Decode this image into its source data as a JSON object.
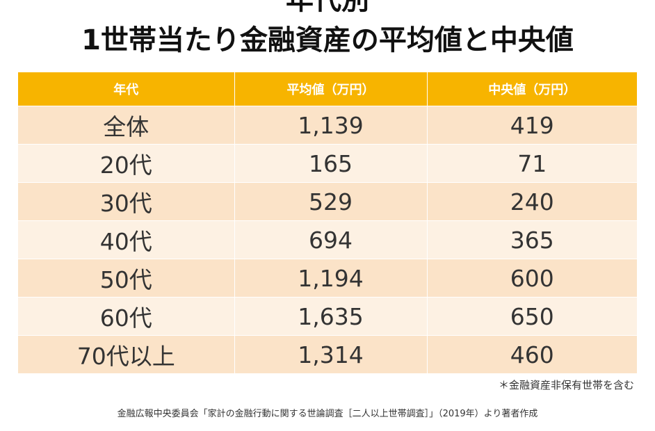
{
  "title": {
    "line1": "年代別",
    "line2": "1世帯当たり金融資産の平均値と中央値"
  },
  "table": {
    "headers": [
      "年代",
      "平均値（万円）",
      "中央値（万円）"
    ],
    "rows": [
      {
        "age": "全体",
        "mean": "1,139",
        "median": "419"
      },
      {
        "age": "20代",
        "mean": "165",
        "median": "71"
      },
      {
        "age": "30代",
        "mean": "529",
        "median": "240"
      },
      {
        "age": "40代",
        "mean": "694",
        "median": "365"
      },
      {
        "age": "50代",
        "mean": "1,194",
        "median": "600"
      },
      {
        "age": "60代",
        "mean": "1,635",
        "median": "650"
      },
      {
        "age": "70代以上",
        "mean": "1,314",
        "median": "460"
      }
    ]
  },
  "note": "＊金融資産非保有世帯を含む",
  "source": "金融広報中央委員会「家計の金融行動に関する世論調査［二人以上世帯調査］」（2019年）より著者作成",
  "colors": {
    "header": "#f7b400",
    "row_dark": "#fbe3c8",
    "row_light": "#fdf1e3"
  }
}
